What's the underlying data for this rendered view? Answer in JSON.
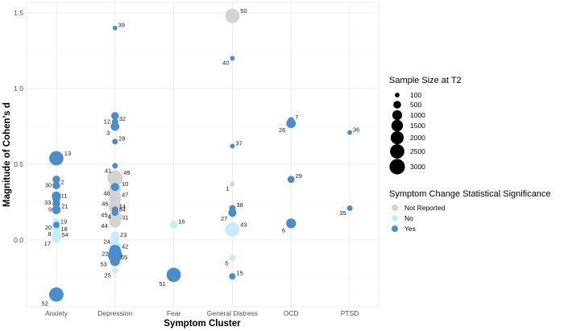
{
  "chart_data": {
    "type": "scatter",
    "title": "",
    "xlabel": "Symptom Cluster",
    "ylabel": "Magnitude of Cohen's d",
    "categories": [
      "Anxiety",
      "Depression",
      "Fear",
      "General Distress",
      "OCD",
      "PTSD"
    ],
    "ylim": [
      -0.42,
      1.55
    ],
    "y_ticks": [
      0.0,
      0.5,
      1.0,
      1.5
    ],
    "y_tick_labels": [
      "0.0",
      "0.5",
      "1.0",
      "1.5"
    ],
    "grid": true,
    "colors": {
      "Not Reported": "#d3d3d3",
      "No": "#c6ecfb",
      "Yes": "#4a8ccc"
    },
    "legend_size": {
      "title": "Sample Size at T2",
      "values": [
        100,
        500,
        1000,
        1500,
        2000,
        2500,
        3000
      ],
      "labels": [
        "100",
        "500",
        "1000",
        "1500",
        "2000",
        "2500",
        "3000"
      ],
      "placement": "right"
    },
    "legend_color": {
      "title": "Symptom Change Statistical Significance",
      "labels": [
        "Not Reported",
        "No",
        "Yes"
      ],
      "placement": "right"
    },
    "points": [
      {
        "id": "13",
        "category": "Anxiety",
        "d": 0.54,
        "n": 2500,
        "sig": "Yes"
      },
      {
        "id": "30",
        "category": "Anxiety",
        "d": 0.4,
        "n": 500,
        "sig": "Yes"
      },
      {
        "id": "2",
        "category": "Anxiety",
        "d": 0.36,
        "n": 500,
        "sig": "Yes"
      },
      {
        "id": "33",
        "category": "Anxiety",
        "d": 0.29,
        "n": 800,
        "sig": "Yes"
      },
      {
        "id": "11",
        "category": "Anxiety",
        "d": 0.27,
        "n": 500,
        "sig": "Yes"
      },
      {
        "id": "9",
        "category": "Anxiety",
        "d": 0.24,
        "n": 500,
        "sig": "Yes"
      },
      {
        "id": "21",
        "category": "Anxiety",
        "d": 0.2,
        "n": 700,
        "sig": "Yes"
      },
      {
        "id": "20",
        "category": "Anxiety",
        "d": 0.12,
        "n": 500,
        "sig": "No"
      },
      {
        "id": "19",
        "category": "Anxiety",
        "d": 0.1,
        "n": 300,
        "sig": "Yes"
      },
      {
        "id": "8",
        "category": "Anxiety",
        "d": 0.08,
        "n": 600,
        "sig": "No"
      },
      {
        "id": "18",
        "category": "Anxiety",
        "d": 0.05,
        "n": 400,
        "sig": "No"
      },
      {
        "id": "17",
        "category": "Anxiety",
        "d": 0.02,
        "n": 900,
        "sig": "No"
      },
      {
        "id": "54",
        "category": "Anxiety",
        "d": 0.01,
        "n": 700,
        "sig": "No"
      },
      {
        "id": "52",
        "category": "Anxiety",
        "d": -0.36,
        "n": 2500,
        "sig": "Yes"
      },
      {
        "id": "39",
        "category": "Depression",
        "d": 1.4,
        "n": 100,
        "sig": "Yes"
      },
      {
        "id": "12",
        "category": "Depression",
        "d": 0.82,
        "n": 500,
        "sig": "Yes"
      },
      {
        "id": "32",
        "category": "Depression",
        "d": 0.78,
        "n": 300,
        "sig": "Yes"
      },
      {
        "id": "3",
        "category": "Depression",
        "d": 0.75,
        "n": 700,
        "sig": "Yes"
      },
      {
        "id": "28",
        "category": "Depression",
        "d": 0.65,
        "n": 200,
        "sig": "Yes"
      },
      {
        "id": "41",
        "category": "Depression",
        "d": 0.49,
        "n": 200,
        "sig": "Yes"
      },
      {
        "id": "49",
        "category": "Depression",
        "d": 0.41,
        "n": 3000,
        "sig": "Not Reported"
      },
      {
        "id": "48",
        "category": "Depression",
        "d": 0.35,
        "n": 600,
        "sig": "Yes"
      },
      {
        "id": "10",
        "category": "Depression",
        "d": 0.34,
        "n": 1500,
        "sig": "Not Reported"
      },
      {
        "id": "46",
        "category": "Depression",
        "d": 0.29,
        "n": 1500,
        "sig": "Not Reported"
      },
      {
        "id": "47",
        "category": "Depression",
        "d": 0.27,
        "n": 1500,
        "sig": "Not Reported"
      },
      {
        "id": "45",
        "category": "Depression",
        "d": 0.22,
        "n": 2000,
        "sig": "Not Reported"
      },
      {
        "id": "14",
        "category": "Depression",
        "d": 0.2,
        "n": 300,
        "sig": "Yes"
      },
      {
        "id": "4",
        "category": "Depression",
        "d": 0.19,
        "n": 300,
        "sig": "Yes"
      },
      {
        "id": "34",
        "category": "Depression",
        "d": 0.18,
        "n": 300,
        "sig": "Yes"
      },
      {
        "id": "44",
        "category": "Depression",
        "d": 0.15,
        "n": 2000,
        "sig": "Not Reported"
      },
      {
        "id": "31",
        "category": "Depression",
        "d": 0.12,
        "n": 1500,
        "sig": "Not Reported"
      },
      {
        "id": "24",
        "category": "Depression",
        "d": 0.03,
        "n": 600,
        "sig": "No"
      },
      {
        "id": "23",
        "category": "Depression",
        "d": 0.01,
        "n": 700,
        "sig": "No"
      },
      {
        "id": "22",
        "category": "Depression",
        "d": -0.04,
        "n": 1500,
        "sig": "No"
      },
      {
        "id": "42",
        "category": "Depression",
        "d": -0.07,
        "n": 1500,
        "sig": "Yes"
      },
      {
        "id": "53",
        "category": "Depression",
        "d": -0.1,
        "n": 2500,
        "sig": "Yes"
      },
      {
        "id": "55",
        "category": "Depression",
        "d": -0.14,
        "n": 1000,
        "sig": "Yes"
      },
      {
        "id": "25",
        "category": "Depression",
        "d": -0.2,
        "n": 300,
        "sig": "No"
      },
      {
        "id": "16",
        "category": "Fear",
        "d": 0.1,
        "n": 500,
        "sig": "No"
      },
      {
        "id": "51",
        "category": "Fear",
        "d": -0.23,
        "n": 2500,
        "sig": "Yes"
      },
      {
        "id": "50",
        "category": "General Distress",
        "d": 1.48,
        "n": 2500,
        "sig": "Not Reported"
      },
      {
        "id": "40",
        "category": "General Distress",
        "d": 1.2,
        "n": 100,
        "sig": "Yes"
      },
      {
        "id": "37",
        "category": "General Distress",
        "d": 0.62,
        "n": 100,
        "sig": "Yes"
      },
      {
        "id": "1",
        "category": "General Distress",
        "d": 0.37,
        "n": 100,
        "sig": "Not Reported"
      },
      {
        "id": "38",
        "category": "General Distress",
        "d": 0.21,
        "n": 300,
        "sig": "Yes"
      },
      {
        "id": "27",
        "category": "General Distress",
        "d": 0.18,
        "n": 600,
        "sig": "Yes"
      },
      {
        "id": "43",
        "category": "General Distress",
        "d": 0.07,
        "n": 2500,
        "sig": "No"
      },
      {
        "id": "5",
        "category": "General Distress",
        "d": -0.12,
        "n": 300,
        "sig": "No"
      },
      {
        "id": "15",
        "category": "General Distress",
        "d": -0.24,
        "n": 300,
        "sig": "Yes"
      },
      {
        "id": "7",
        "category": "OCD",
        "d": 0.79,
        "n": 300,
        "sig": "Yes"
      },
      {
        "id": "26",
        "category": "OCD",
        "d": 0.77,
        "n": 900,
        "sig": "Yes"
      },
      {
        "id": "29",
        "category": "OCD",
        "d": 0.4,
        "n": 400,
        "sig": "Yes"
      },
      {
        "id": "6",
        "category": "OCD",
        "d": 0.11,
        "n": 1000,
        "sig": "Yes"
      },
      {
        "id": "36",
        "category": "PTSD",
        "d": 0.71,
        "n": 100,
        "sig": "Yes"
      },
      {
        "id": "35",
        "category": "PTSD",
        "d": 0.21,
        "n": 200,
        "sig": "Yes"
      }
    ]
  }
}
